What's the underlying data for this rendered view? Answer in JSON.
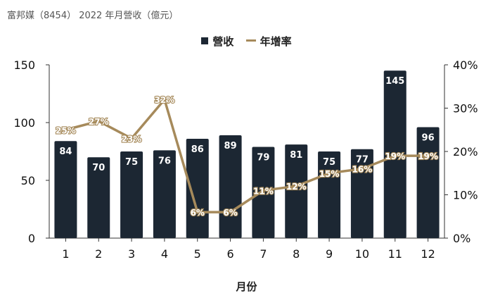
{
  "title": "富邦媒（8454） 2022 年月營收（億元）",
  "chart_data": {
    "type": "bar",
    "title": "富邦媒（8454） 2022 年月營收（億元）",
    "xlabel": "月份",
    "categories": [
      "1",
      "2",
      "3",
      "4",
      "5",
      "6",
      "7",
      "8",
      "9",
      "10",
      "11",
      "12"
    ],
    "series": [
      {
        "name": "營收",
        "type": "bar",
        "axis": "left",
        "color": "#1c2733",
        "values": [
          84,
          70,
          75,
          76,
          86,
          89,
          79,
          81,
          75,
          77,
          145,
          96
        ],
        "labels": [
          "84",
          "70",
          "75",
          "76",
          "86",
          "89",
          "79",
          "81",
          "75",
          "77",
          "145",
          "96"
        ]
      },
      {
        "name": "年增率",
        "type": "line",
        "axis": "right",
        "color": "#a68a5b",
        "values": [
          25,
          27,
          23,
          32,
          6,
          6,
          11,
          12,
          15,
          16,
          19,
          19
        ],
        "labels": [
          "25%",
          "27%",
          "23%",
          "32%",
          "6%",
          "6%",
          "11%",
          "12%",
          "15%",
          "16%",
          "19%",
          "19%"
        ]
      }
    ],
    "y_left": {
      "lim": [
        0,
        150
      ],
      "ticks": [
        "0",
        "50",
        "100",
        "150"
      ]
    },
    "y_right": {
      "lim": [
        0,
        40
      ],
      "ticks": [
        "0%",
        "10%",
        "20%",
        "30%",
        "40%"
      ]
    },
    "legend": "top-center",
    "grid": false
  }
}
